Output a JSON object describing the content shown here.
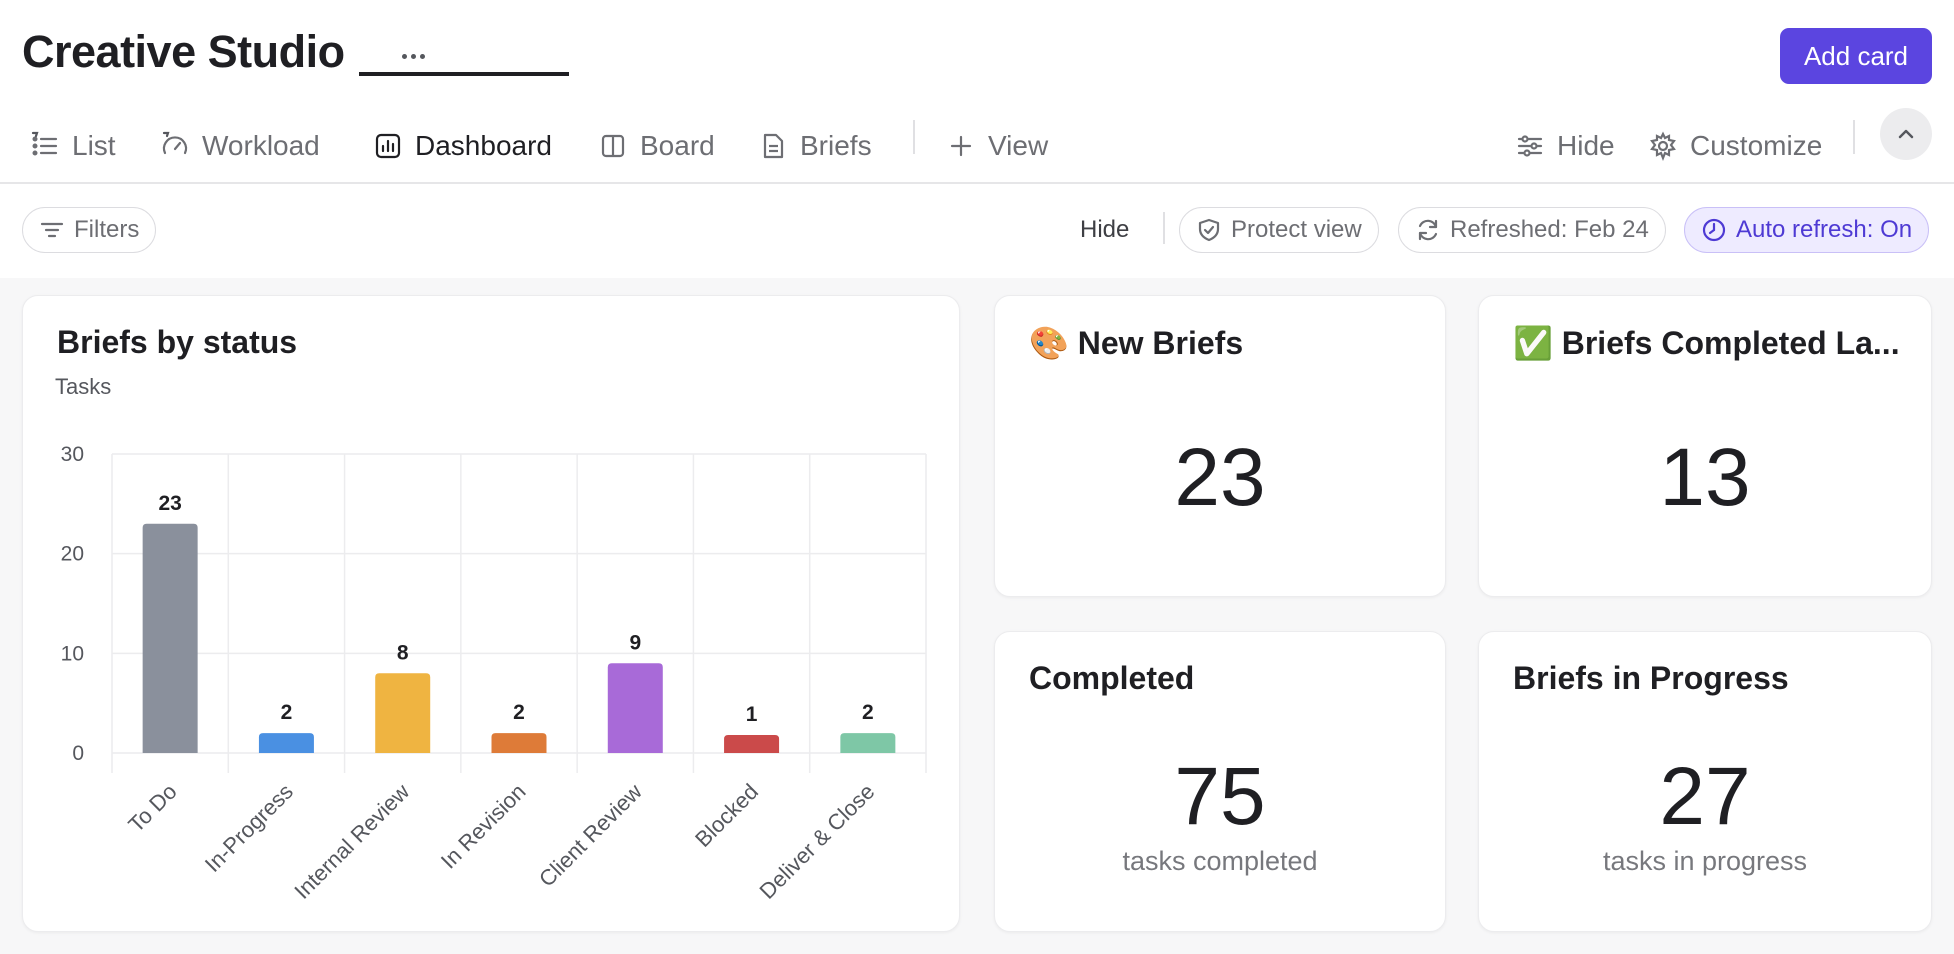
{
  "header": {
    "title": "Creative Studio",
    "add_card_label": "Add card"
  },
  "tabs": [
    {
      "label": "List",
      "icon": "list-icon"
    },
    {
      "label": "Workload",
      "icon": "gauge-icon"
    },
    {
      "label": "Dashboard",
      "icon": "dashboard-icon",
      "active": true
    },
    {
      "label": "Board",
      "icon": "board-icon"
    },
    {
      "label": "Briefs",
      "icon": "document-icon"
    },
    {
      "label": "View",
      "icon": "plus-icon"
    }
  ],
  "tab_actions": {
    "hide_label": "Hide",
    "customize_label": "Customize"
  },
  "toolbar": {
    "filters_label": "Filters",
    "hide_label": "Hide",
    "protect_label": "Protect view",
    "refreshed_label": "Refreshed: Feb 24",
    "auto_refresh_label": "Auto refresh: On"
  },
  "colors": {
    "accent": "#5b45e0",
    "accent_soft": "#eeebff"
  },
  "cards": {
    "status_chart": {
      "title": "Briefs by status"
    },
    "new_briefs": {
      "title": "🎨 New Briefs",
      "value": "23"
    },
    "completed_last": {
      "title": "✅ Briefs Completed La...",
      "value": "13"
    },
    "completed": {
      "title": "Completed",
      "value": "75",
      "sub": "tasks completed"
    },
    "in_progress": {
      "title": "Briefs in Progress",
      "value": "27",
      "sub": "tasks in progress"
    }
  },
  "chart_data": {
    "type": "bar",
    "title": "Briefs by status",
    "ylabel": "Tasks",
    "ylim": [
      0,
      30
    ],
    "yticks": [
      0,
      10,
      20,
      30
    ],
    "grid": true,
    "categories": [
      "To Do",
      "In-Progress",
      "Internal Review",
      "In Revision",
      "Client Review",
      "Blocked",
      "Deliver & Close"
    ],
    "values": [
      23,
      2,
      8,
      2,
      9,
      1,
      2
    ],
    "colors": [
      "#8a909c",
      "#4a90e2",
      "#efb441",
      "#de7b38",
      "#a86ad8",
      "#cb4a4a",
      "#7ec7a6"
    ]
  }
}
